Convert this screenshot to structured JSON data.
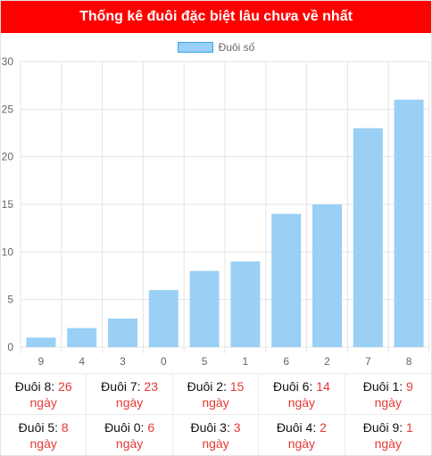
{
  "header": {
    "title": "Thống kê đuôi đặc biệt lâu chưa về nhất"
  },
  "chart_data": {
    "type": "bar",
    "categories": [
      "9",
      "4",
      "3",
      "0",
      "5",
      "1",
      "6",
      "2",
      "7",
      "8"
    ],
    "series": [
      {
        "name": "Đuôi số",
        "values": [
          1,
          2,
          3,
          6,
          8,
          9,
          14,
          15,
          23,
          26
        ]
      }
    ],
    "ylim": [
      0,
      30
    ],
    "yticks": [
      "0",
      "5",
      "10",
      "15",
      "20",
      "25",
      "30"
    ],
    "grid": true,
    "legend_position": "top-center",
    "colors": {
      "bar_fill": "#9ad0f5",
      "bar_border": "#36a2eb",
      "grid": "#e5e5e5"
    }
  },
  "stats": [
    {
      "label": "Đuôi 8:",
      "value": "26",
      "unit": "ngày"
    },
    {
      "label": "Đuôi 7:",
      "value": "23",
      "unit": "ngày"
    },
    {
      "label": "Đuôi 2:",
      "value": "15",
      "unit": "ngày"
    },
    {
      "label": "Đuôi 6:",
      "value": "14",
      "unit": "ngày"
    },
    {
      "label": "Đuôi 1:",
      "value": "9",
      "unit": "ngày"
    },
    {
      "label": "Đuôi 5:",
      "value": "8",
      "unit": "ngày"
    },
    {
      "label": "Đuôi 0:",
      "value": "6",
      "unit": "ngày"
    },
    {
      "label": "Đuôi 3:",
      "value": "3",
      "unit": "ngày"
    },
    {
      "label": "Đuôi 4:",
      "value": "2",
      "unit": "ngày"
    },
    {
      "label": "Đuôi 9:",
      "value": "1",
      "unit": "ngày"
    }
  ],
  "colors": {
    "header_bg": "#ff0000",
    "accent_text": "#e53935"
  }
}
